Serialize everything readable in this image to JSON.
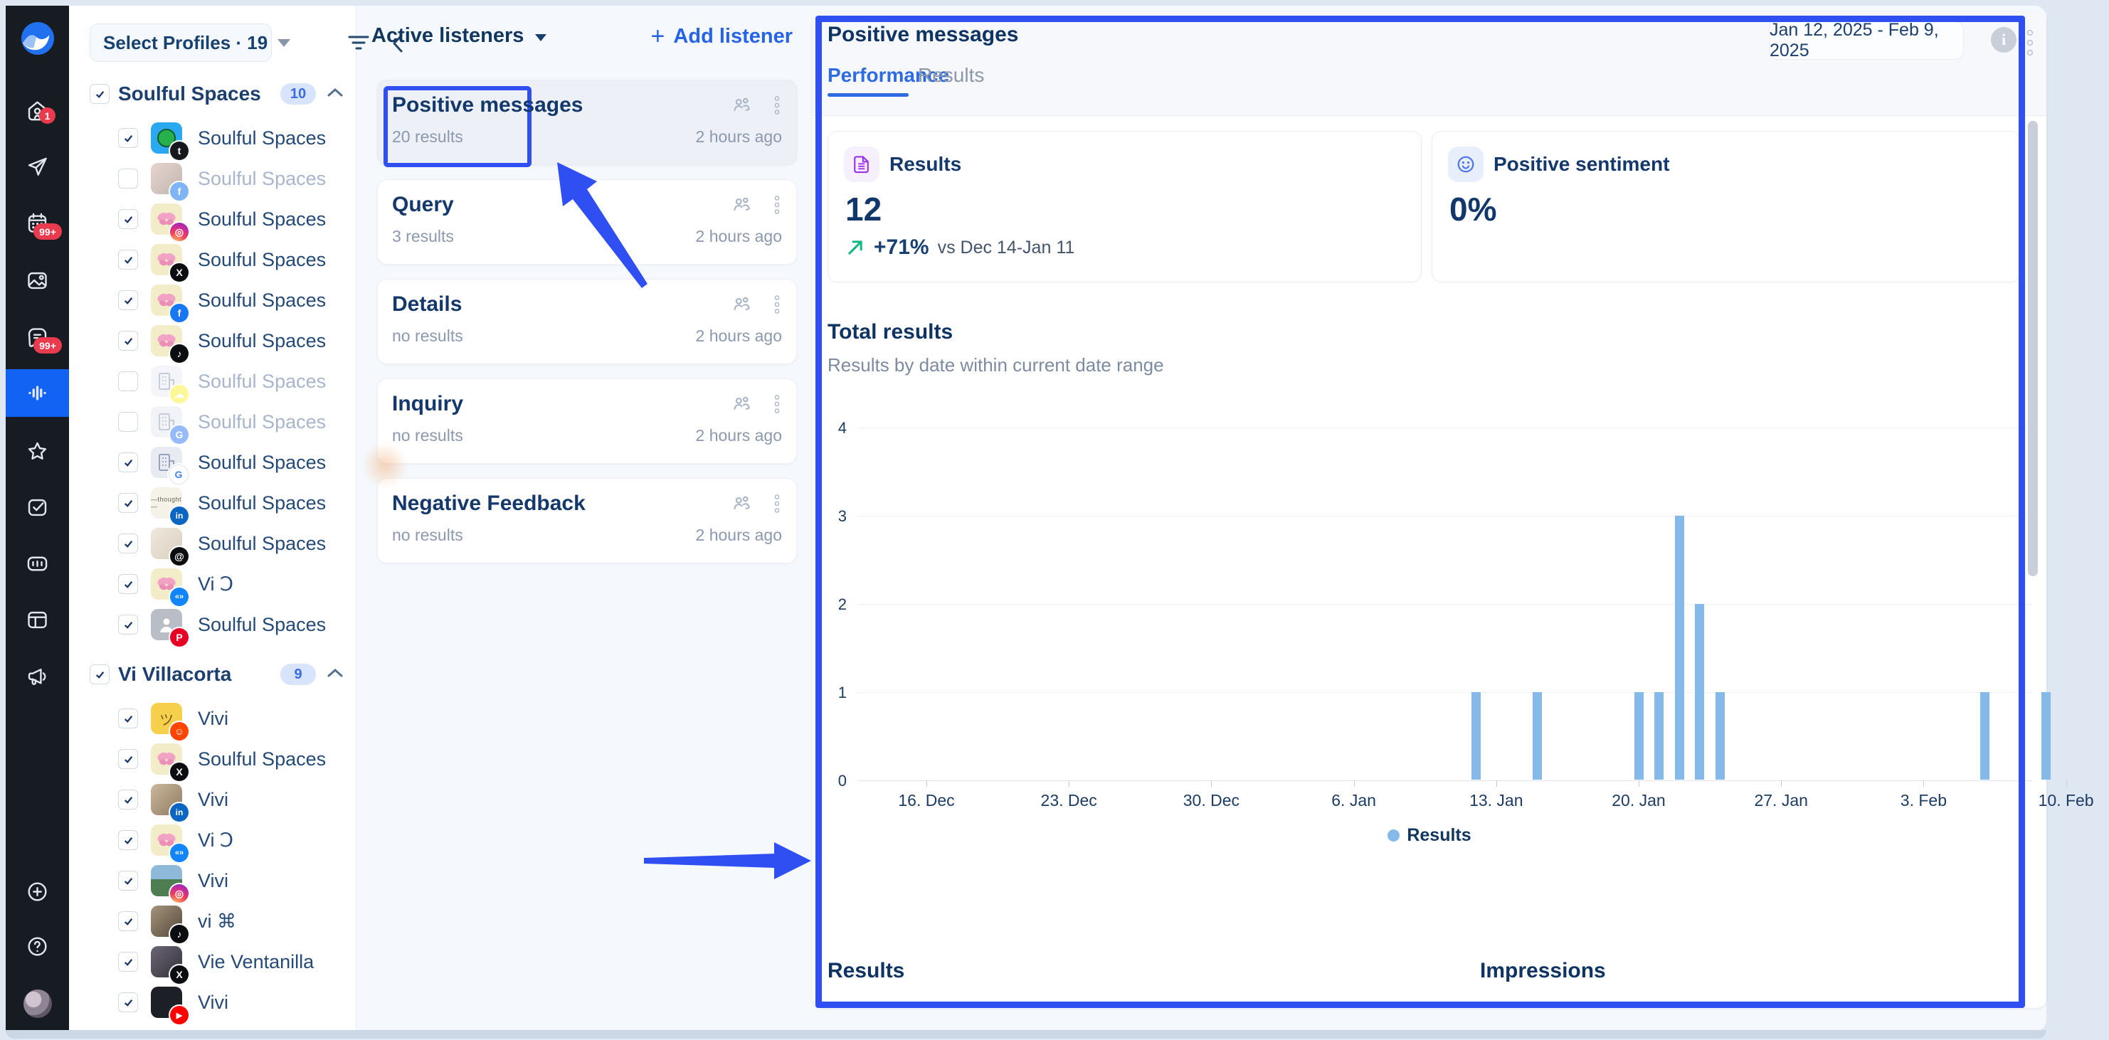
{
  "colors": {
    "annotation": "#2f4ff2",
    "accent-blue": "#2563e8",
    "tab-active": "#2e6ae2",
    "navy": "#17416e",
    "navy-strong": "#0f3463",
    "muted": "#8493a8",
    "bar": "#85b9e9",
    "sidebar-bg": "#171b22",
    "sidebar-active": "#1262f4",
    "badge-red": "#e93a4e",
    "green": "#10b981",
    "purple": "#9b32e8"
  },
  "sidebar": {
    "items": [
      {
        "id": "home",
        "badge": "1"
      },
      {
        "id": "publish"
      },
      {
        "id": "calendar",
        "badge": "99+"
      },
      {
        "id": "media"
      },
      {
        "id": "inbox",
        "badge": "99+"
      },
      {
        "id": "listening",
        "active": true
      },
      {
        "id": "reviews"
      },
      {
        "id": "tasks"
      },
      {
        "id": "reports"
      },
      {
        "id": "boards"
      },
      {
        "id": "advocacy"
      }
    ],
    "footer": [
      {
        "id": "add"
      },
      {
        "id": "help"
      },
      {
        "id": "profile-avatar"
      }
    ]
  },
  "profiles_panel": {
    "selector_label": "Select Profiles · 19",
    "groups": [
      {
        "name": "Soulful Spaces",
        "count": "10",
        "items": [
          {
            "label": "Soulful Spaces",
            "network": "tumblr",
            "checked": true,
            "avatar": "tumblr-av"
          },
          {
            "label": "Soulful Spaces",
            "network": "facebook",
            "checked": false,
            "avatar": "photo-tan"
          },
          {
            "label": "Soulful Spaces",
            "network": "instagram",
            "checked": true,
            "avatar": "butterfly"
          },
          {
            "label": "Soulful Spaces",
            "network": "x",
            "checked": true,
            "avatar": "butterfly"
          },
          {
            "label": "Soulful Spaces",
            "network": "facebook",
            "checked": true,
            "avatar": "butterfly"
          },
          {
            "label": "Soulful Spaces",
            "network": "tiktok",
            "checked": true,
            "avatar": "butterfly"
          },
          {
            "label": "Soulful Spaces",
            "network": "snapchat",
            "checked": false,
            "avatar": "building-light"
          },
          {
            "label": "Soulful Spaces",
            "network": "google",
            "checked": false,
            "avatar": "building"
          },
          {
            "label": "Soulful Spaces",
            "network": "google2",
            "checked": true,
            "avatar": "building"
          },
          {
            "label": "Soulful Spaces",
            "network": "linkedin",
            "checked": true,
            "avatar": "logo-light"
          },
          {
            "label": "Soulful Spaces",
            "network": "threads",
            "checked": true,
            "avatar": "room"
          },
          {
            "label": "Vi Ↄ",
            "network": "bluesky",
            "checked": true,
            "avatar": "butterfly"
          },
          {
            "label": "Soulful Spaces",
            "network": "pinterest",
            "checked": true,
            "avatar": "person-gray"
          }
        ]
      },
      {
        "name": "Vi Villacorta",
        "count": "9",
        "items": [
          {
            "label": "Vivi",
            "network": "reddit",
            "checked": true,
            "avatar": "cartoon-yellow"
          },
          {
            "label": "Soulful Spaces",
            "network": "x",
            "checked": true,
            "avatar": "butterfly"
          },
          {
            "label": "Vivi",
            "network": "linkedin",
            "checked": true,
            "avatar": "photo"
          },
          {
            "label": "Vi Ↄ",
            "network": "bluesky",
            "checked": true,
            "avatar": "butterfly"
          },
          {
            "label": "Vivi",
            "network": "instagram",
            "checked": true,
            "avatar": "landscape"
          },
          {
            "label": "vi ⌘",
            "network": "tiktok",
            "checked": true,
            "avatar": "photo-dark"
          },
          {
            "label": "Vie Ventanilla",
            "network": "x",
            "checked": true,
            "avatar": "photo-dim"
          },
          {
            "label": "Vivi",
            "network": "youtube",
            "checked": true,
            "avatar": "photo-black"
          }
        ]
      }
    ]
  },
  "listeners_panel": {
    "title": "Active listeners",
    "add_button": "Add listener",
    "cards": [
      {
        "title": "Positive messages",
        "subtitle": "20 results",
        "time": "2 hours ago",
        "selected": true,
        "annotated": true
      },
      {
        "title": "Query",
        "subtitle": "3 results",
        "time": "2 hours ago",
        "selected": false,
        "annotated": false
      },
      {
        "title": "Details",
        "subtitle": "no results",
        "time": "2 hours ago",
        "selected": false,
        "annotated": false
      },
      {
        "title": "Inquiry",
        "subtitle": "no results",
        "time": "2 hours ago",
        "selected": false,
        "annotated": false
      },
      {
        "title": "Negative Feedback",
        "subtitle": "no results",
        "time": "2 hours ago",
        "selected": false,
        "annotated": false
      }
    ]
  },
  "main_panel": {
    "title": "Positive messages",
    "tabs": [
      {
        "label": "Performance",
        "active": true
      },
      {
        "label": "Results",
        "active": false
      }
    ],
    "date_range": "Jan 12, 2025 - Feb 9, 2025",
    "metrics": [
      {
        "label": "Results",
        "value": "12",
        "delta": "+71%",
        "delta_note": "vs Dec 14-Jan 11",
        "icon": "document-icon"
      },
      {
        "label": "Positive sentiment",
        "value": "0%",
        "icon": "smiley-icon"
      }
    ],
    "bottom_sections": [
      "Results",
      "Impressions"
    ]
  },
  "chart_data": {
    "type": "bar",
    "title": "Total results",
    "subtitle": "Results by date within current date range",
    "series_name": "Results",
    "ylim": [
      0,
      4
    ],
    "y_ticks": [
      0,
      1,
      2,
      3,
      4
    ],
    "x_tick_labels": [
      "16. Dec",
      "23. Dec",
      "30. Dec",
      "6. Jan",
      "13. Jan",
      "20. Jan",
      "27. Jan",
      "3. Feb",
      "10. Feb"
    ],
    "x_tick_day_offsets": [
      0,
      7,
      14,
      21,
      28,
      35,
      42,
      49,
      56
    ],
    "bars": [
      {
        "date": "Jan 12",
        "day_offset": 27,
        "value": 1
      },
      {
        "date": "Jan 15",
        "day_offset": 30,
        "value": 1
      },
      {
        "date": "Jan 20",
        "day_offset": 35,
        "value": 1
      },
      {
        "date": "Jan 21",
        "day_offset": 36,
        "value": 1
      },
      {
        "date": "Jan 22",
        "day_offset": 37,
        "value": 3
      },
      {
        "date": "Jan 23",
        "day_offset": 38,
        "value": 2
      },
      {
        "date": "Jan 24",
        "day_offset": 39,
        "value": 1
      },
      {
        "date": "Feb 6",
        "day_offset": 52,
        "value": 1
      },
      {
        "date": "Feb 9",
        "day_offset": 55,
        "value": 1
      }
    ],
    "legend_position": "bottom-center",
    "grid": true
  }
}
